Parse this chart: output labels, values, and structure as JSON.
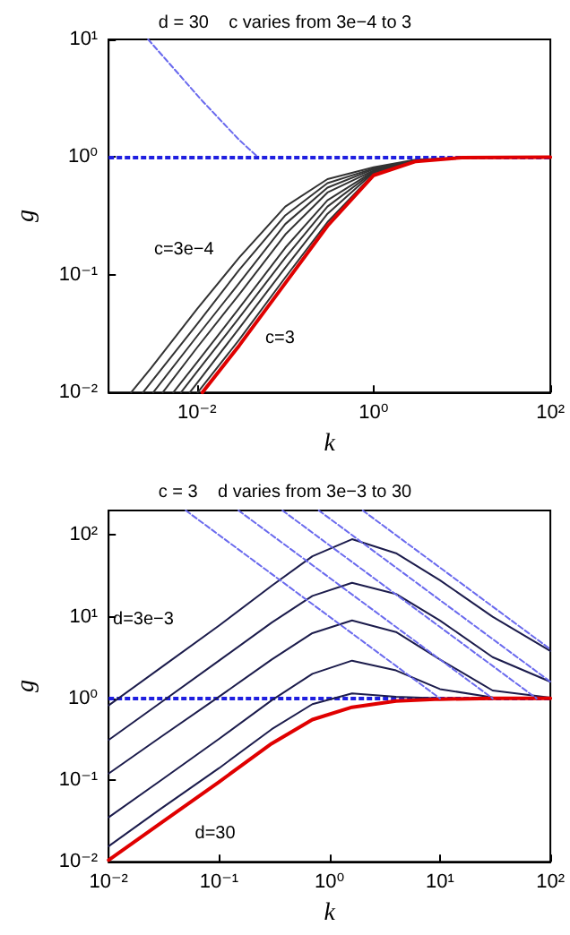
{
  "chart_data": [
    {
      "type": "line",
      "title": "d = 30    c varies from 3e−4 to 3",
      "xlabel": "k",
      "ylabel": "g",
      "log": "xy",
      "marker": "none",
      "xlim": [
        0.001,
        100
      ],
      "xticks": [
        {
          "value": 0.01,
          "label": "10⁻²"
        },
        {
          "value": 1,
          "label": "10⁰"
        },
        {
          "value": 100,
          "label": "10²"
        }
      ],
      "ylim": [
        0.01,
        10
      ],
      "yticks": [
        {
          "value": 0.01,
          "label": "10⁻²"
        },
        {
          "value": 0.1,
          "label": "10⁻¹"
        },
        {
          "value": 1,
          "label": "10⁰"
        },
        {
          "value": 10,
          "label": "10¹"
        }
      ],
      "ref_lines": [
        {
          "axis": "y",
          "value": 1,
          "color": "#1f1fe0",
          "line_style": "dashed"
        }
      ],
      "annotations": [
        "c=3e−4",
        "c=3"
      ],
      "series": [
        {
          "color": "#6a6aee",
          "line_style": "dashed",
          "x": [
            0.0028,
            0.0115,
            0.03,
            0.049
          ],
          "values": [
            10,
            3,
            1.4,
            1
          ]
        },
        {
          "color": "#333333",
          "x": [
            0.0018,
            0.003,
            0.01,
            0.03,
            0.1,
            0.3,
            1,
            3,
            10,
            100
          ],
          "values": [
            0.01,
            0.016,
            0.051,
            0.14,
            0.38,
            0.65,
            0.82,
            0.95,
            0.99,
            1
          ]
        },
        {
          "color": "#333333",
          "x": [
            0.00245,
            0.01,
            0.03,
            0.1,
            0.3,
            1,
            3,
            10,
            100
          ],
          "values": [
            0.01,
            0.038,
            0.11,
            0.32,
            0.6,
            0.8,
            0.94,
            0.99,
            1
          ]
        },
        {
          "color": "#333333",
          "x": [
            0.0032,
            0.01,
            0.03,
            0.1,
            0.3,
            1,
            3,
            10,
            100
          ],
          "values": [
            0.01,
            0.03,
            0.085,
            0.27,
            0.55,
            0.79,
            0.94,
            0.99,
            1
          ]
        },
        {
          "color": "#333333",
          "x": [
            0.0041,
            0.01,
            0.03,
            0.1,
            0.3,
            1,
            3,
            10,
            100
          ],
          "values": [
            0.01,
            0.024,
            0.068,
            0.22,
            0.5,
            0.77,
            0.93,
            0.99,
            1
          ]
        },
        {
          "color": "#333333",
          "x": [
            0.0054,
            0.01,
            0.03,
            0.1,
            0.3,
            1,
            3,
            10,
            100
          ],
          "values": [
            0.01,
            0.018,
            0.052,
            0.17,
            0.43,
            0.76,
            0.93,
            0.99,
            1
          ]
        },
        {
          "color": "#333333",
          "x": [
            0.0066,
            0.01,
            0.03,
            0.1,
            0.3,
            1,
            3,
            10,
            100
          ],
          "values": [
            0.01,
            0.015,
            0.043,
            0.14,
            0.38,
            0.75,
            0.93,
            0.99,
            1
          ]
        },
        {
          "color": "#333333",
          "x": [
            0.0083,
            0.01,
            0.03,
            0.1,
            0.3,
            1,
            3,
            10,
            100
          ],
          "values": [
            0.01,
            0.012,
            0.035,
            0.115,
            0.33,
            0.74,
            0.92,
            0.99,
            1
          ]
        },
        {
          "color": "#333333",
          "x": [
            0.0102,
            0.03,
            0.1,
            0.3,
            1,
            3,
            10,
            100
          ],
          "values": [
            0.01,
            0.028,
            0.095,
            0.28,
            0.72,
            0.92,
            0.99,
            1
          ]
        },
        {
          "color": "#e00000",
          "x": [
            0.0115,
            0.03,
            0.1,
            0.3,
            1,
            3,
            10,
            100
          ],
          "values": [
            0.01,
            0.025,
            0.085,
            0.26,
            0.7,
            0.92,
            0.99,
            1
          ]
        }
      ]
    },
    {
      "type": "line",
      "title": "c = 3    d varies from 3e−3 to 30",
      "xlabel": "k",
      "ylabel": "g",
      "log": "xy",
      "marker": "none",
      "xlim": [
        0.01,
        100
      ],
      "xticks": [
        {
          "value": 0.01,
          "label": "10⁻²"
        },
        {
          "value": 0.1,
          "label": "10⁻¹"
        },
        {
          "value": 1,
          "label": "10⁰"
        },
        {
          "value": 10,
          "label": "10¹"
        },
        {
          "value": 100,
          "label": "10²"
        }
      ],
      "ylim": [
        0.01,
        200
      ],
      "yticks": [
        {
          "value": 0.01,
          "label": "10⁻²"
        },
        {
          "value": 0.1,
          "label": "10⁻¹"
        },
        {
          "value": 1,
          "label": "10⁰"
        },
        {
          "value": 10,
          "label": "10¹"
        },
        {
          "value": 100,
          "label": "10²"
        }
      ],
      "ref_lines": [
        {
          "axis": "y",
          "value": 1,
          "color": "#1f1fe0",
          "line_style": "dashed"
        }
      ],
      "annotations": [
        "d=3e−3",
        "d=30"
      ],
      "x": [
        0.01,
        0.03,
        0.1,
        0.3,
        0.7,
        1.6,
        4,
        10,
        30,
        100
      ],
      "series": [
        {
          "color": "#6a6aee",
          "line_style": "dashed",
          "x": [
            0.05,
            10
          ],
          "values": [
            200,
            1
          ]
        },
        {
          "color": "#6a6aee",
          "line_style": "dashed",
          "x": [
            0.15,
            30
          ],
          "values": [
            200,
            1
          ]
        },
        {
          "color": "#6a6aee",
          "line_style": "dashed",
          "x": [
            0.375,
            75
          ],
          "values": [
            200,
            1
          ]
        },
        {
          "color": "#6a6aee",
          "line_style": "dashed",
          "x": [
            0.8,
            100
          ],
          "values": [
            200,
            1.6
          ]
        },
        {
          "color": "#6a6aee",
          "line_style": "dashed",
          "x": [
            2,
            100
          ],
          "values": [
            200,
            4
          ]
        },
        {
          "color": "#1c1c4c",
          "values": [
            0.82,
            2.4,
            7.8,
            24,
            55,
            89,
            60,
            28,
            10,
            3.8
          ]
        },
        {
          "color": "#1c1c4c",
          "values": [
            0.31,
            0.9,
            2.9,
            8.5,
            18,
            26,
            19,
            9,
            3.2,
            1.6
          ]
        },
        {
          "color": "#1c1c4c",
          "values": [
            0.12,
            0.34,
            1.05,
            3,
            6.3,
            9,
            6.5,
            3,
            1.25,
            1.02
          ]
        },
        {
          "color": "#1c1c4c",
          "values": [
            0.035,
            0.1,
            0.32,
            0.95,
            2,
            2.9,
            2.2,
            1.3,
            1.03,
            1
          ]
        },
        {
          "color": "#1c1c4c",
          "values": [
            0.0155,
            0.045,
            0.14,
            0.42,
            0.85,
            1.15,
            1.05,
            1,
            1,
            1
          ]
        },
        {
          "color": "#e00000",
          "values": [
            0.0105,
            0.03,
            0.095,
            0.28,
            0.55,
            0.78,
            0.93,
            0.98,
            1,
            1
          ]
        }
      ]
    }
  ]
}
